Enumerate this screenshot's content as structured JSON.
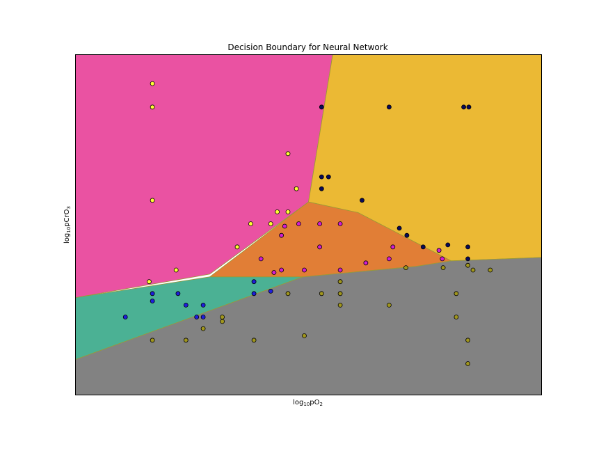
{
  "chart_data": {
    "type": "scatter",
    "title": "Decision Boundary for Neural Network",
    "xlabel": {
      "prefix": "log",
      "sub": "10",
      "main": "pO",
      "tail_sub": "2"
    },
    "ylabel": {
      "prefix": "log",
      "sub": "10",
      "main": "pCrO",
      "tail_sub": "3"
    },
    "xlim": [
      0,
      100
    ],
    "ylim": [
      0,
      100
    ],
    "ticks": "none",
    "grid": false,
    "regions": [
      {
        "class": "pink",
        "color": "#EA52A2",
        "points": [
          [
            0,
            100
          ],
          [
            55.2,
            100
          ],
          [
            50,
            56.7
          ],
          [
            28.8,
            35.5
          ],
          [
            0,
            28.6
          ]
        ]
      },
      {
        "class": "yellow",
        "color": "#EBB934",
        "points": [
          [
            55.2,
            100
          ],
          [
            100,
            100
          ],
          [
            100,
            40.4
          ],
          [
            80.6,
            39.4
          ],
          [
            60.6,
            53.6
          ],
          [
            50,
            56.7
          ]
        ]
      },
      {
        "class": "orange",
        "color": "#E17E36",
        "points": [
          [
            50,
            56.7
          ],
          [
            60.6,
            53.6
          ],
          [
            80.6,
            39.4
          ],
          [
            73.1,
            37.8
          ],
          [
            48.8,
            34.7
          ],
          [
            28.8,
            34.7
          ]
        ]
      },
      {
        "class": "teal",
        "color": "#4BB194",
        "points": [
          [
            0,
            28.6
          ],
          [
            28.8,
            34.7
          ],
          [
            48.8,
            34.7
          ],
          [
            0,
            10.4
          ]
        ]
      },
      {
        "class": "gray",
        "color": "#828282",
        "points": [
          [
            0,
            0
          ],
          [
            100,
            0
          ],
          [
            100,
            40.4
          ],
          [
            80.6,
            39.4
          ],
          [
            73.1,
            37.8
          ],
          [
            48.8,
            34.7
          ],
          [
            0,
            10.4
          ]
        ]
      }
    ],
    "series": [
      {
        "class": "yellow-points",
        "color": "#FFFF33",
        "points": [
          [
            16.5,
            91.5
          ],
          [
            16.5,
            84.6
          ],
          [
            16.5,
            57.2
          ],
          [
            21.6,
            36.7
          ],
          [
            15.8,
            33.3
          ],
          [
            45.6,
            70.9
          ],
          [
            47.4,
            60.6
          ],
          [
            43.3,
            53.8
          ],
          [
            45.6,
            53.8
          ],
          [
            37.6,
            50.3
          ],
          [
            41.9,
            50.3
          ],
          [
            34.7,
            43.5
          ]
        ]
      },
      {
        "class": "navy-points",
        "color": "#0A0A5A",
        "points": [
          [
            52.8,
            84.6
          ],
          [
            67.3,
            84.6
          ],
          [
            83.3,
            84.6
          ],
          [
            84.4,
            84.6
          ],
          [
            52.8,
            64.1
          ],
          [
            54.3,
            64.1
          ],
          [
            52.8,
            60.6
          ],
          [
            61.5,
            57.2
          ],
          [
            69.5,
            49.0
          ],
          [
            71.1,
            46.9
          ],
          [
            74.6,
            43.5
          ],
          [
            79.9,
            44.1
          ],
          [
            84.2,
            43.5
          ],
          [
            84.2,
            40.0
          ]
        ]
      },
      {
        "class": "magenta-points",
        "color": "#D21ED2",
        "points": [
          [
            44.9,
            49.6
          ],
          [
            47.9,
            50.3
          ],
          [
            52.4,
            50.3
          ],
          [
            56.8,
            50.3
          ],
          [
            44.2,
            46.9
          ],
          [
            52.4,
            43.5
          ],
          [
            39.8,
            40.0
          ],
          [
            68.1,
            43.5
          ],
          [
            67.3,
            40.0
          ],
          [
            78.0,
            42.5
          ],
          [
            78.7,
            40.0
          ],
          [
            62.3,
            38.8
          ],
          [
            42.6,
            36.0
          ],
          [
            44.2,
            36.7
          ],
          [
            49.1,
            36.7
          ],
          [
            56.8,
            36.7
          ]
        ]
      },
      {
        "class": "blue-points",
        "color": "#1E1EDC",
        "points": [
          [
            16.5,
            29.8
          ],
          [
            16.5,
            27.6
          ],
          [
            22.0,
            29.8
          ],
          [
            23.7,
            26.4
          ],
          [
            27.4,
            26.4
          ],
          [
            38.3,
            33.3
          ],
          [
            38.3,
            29.8
          ],
          [
            41.9,
            30.5
          ],
          [
            10.7,
            22.9
          ],
          [
            26.0,
            22.9
          ],
          [
            27.4,
            22.9
          ]
        ]
      },
      {
        "class": "olive-points",
        "color": "#A0961E",
        "points": [
          [
            45.6,
            29.8
          ],
          [
            52.8,
            29.8
          ],
          [
            56.8,
            33.3
          ],
          [
            56.8,
            29.8
          ],
          [
            56.8,
            26.4
          ],
          [
            67.3,
            26.4
          ],
          [
            70.9,
            37.4
          ],
          [
            78.9,
            37.4
          ],
          [
            84.2,
            38.1
          ],
          [
            85.3,
            36.7
          ],
          [
            89.0,
            36.7
          ],
          [
            81.7,
            29.8
          ],
          [
            81.7,
            22.9
          ],
          [
            31.5,
            22.9
          ],
          [
            31.5,
            21.6
          ],
          [
            27.4,
            19.5
          ],
          [
            16.5,
            16.1
          ],
          [
            23.7,
            16.1
          ],
          [
            38.3,
            16.1
          ],
          [
            49.1,
            17.4
          ],
          [
            84.2,
            16.1
          ],
          [
            84.2,
            9.2
          ]
        ]
      }
    ]
  }
}
